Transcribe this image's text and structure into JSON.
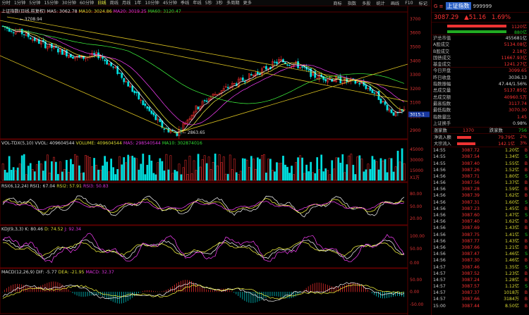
{
  "timeframes": [
    "分时",
    "1分钟",
    "5分钟",
    "15分钟",
    "30分钟",
    "60分钟",
    "日线",
    "周线",
    "月线",
    "1年"
  ],
  "timeframes2": [
    "10分钟",
    "45分钟",
    "季线",
    "年线",
    "5秒",
    "3秒",
    "多周期",
    "更多"
  ],
  "active_timeframe": "日线",
  "top_right": [
    "商标",
    "指数",
    "多股",
    "统计",
    "画线",
    "F10",
    "标记"
  ],
  "main_head": {
    "title": "上证指数(日线,前复权)",
    "ma5": "MA5: 3062.78",
    "ma10": "MA10: 3024.86",
    "ma20": "MA20: 3019.25",
    "ma60": "MA60: 3120.47"
  },
  "vol_head": {
    "title": "VOL-TDX(5,10)",
    "vvol": "VVOL: 409604544",
    "volume": "VOLUME: 409604544",
    "ma5": "MA5: 298540544",
    "ma10": "MA10: 302874016"
  },
  "rsi_head": {
    "title": "RSI(6,12,24)",
    "rsi1": "RSI1: 67.04",
    "rsi2": "RSI2: 57.91",
    "rsi3": "RSI3: 50.83"
  },
  "kdj_head": {
    "title": "KDJ(9,3,3)",
    "k": "K: 80.46",
    "d": "D: 74.52",
    "j": "J: 92.34"
  },
  "macd_head": {
    "title": "MACD(12,26,9)",
    "dif": "DIF: -5.77",
    "dea": "DEA: -21.95",
    "macd": "MACD: 32.37"
  },
  "price_axis": [
    "3700",
    "3600",
    "3500",
    "3400",
    "3300",
    "3200",
    "3100",
    "3000",
    "2900"
  ],
  "vol_axis": [
    "45000",
    "30000",
    "15000",
    "X1万"
  ],
  "rsi_axis": [
    "80.00",
    "50.00",
    "20.00"
  ],
  "kdj_axis": [
    "100.00",
    "50.00",
    "0.00"
  ],
  "macd_axis": [
    "50.00",
    "0.00",
    "-50.00"
  ],
  "high_label": "3708.94",
  "low_label": "2863.65",
  "current_label": "3015.1",
  "quote": {
    "mark": "G ≡",
    "name": "上证指数",
    "code": "999999",
    "price": "3087.29",
    "change": "▲51.16",
    "pct": "1.69%",
    "bar_up": "1120亿",
    "bar_down": "880亿"
  },
  "stats": [
    {
      "k": "沪总市值",
      "v": "455681亿",
      "c": "w"
    },
    {
      "k": "A股成交",
      "v": "5134.08亿",
      "c": "r"
    },
    {
      "k": "B股成交",
      "v": "2.18亿",
      "c": "r"
    },
    {
      "k": "国债成交",
      "v": "11667.93亿",
      "c": "r"
    },
    {
      "k": "基金成交",
      "v": "1241.27亿",
      "c": "r"
    },
    {
      "k": "今日开盘",
      "v": "3099.65",
      "c": "r"
    },
    {
      "k": "昨日收盘",
      "v": "3036.13",
      "c": "w"
    },
    {
      "k": "指数振幅",
      "v": "47.44/1.56%",
      "c": "w"
    },
    {
      "k": "总成交量",
      "v": "5137.85亿",
      "c": "r"
    },
    {
      "k": "总成交额",
      "v": "40960.5万",
      "c": "r"
    },
    {
      "k": "最高指数",
      "v": "3117.74",
      "c": "r"
    },
    {
      "k": "最低指数",
      "v": "3070.30",
      "c": "r"
    },
    {
      "k": "指数量比",
      "v": "1.45",
      "c": "r"
    },
    {
      "k": "上证换手",
      "v": "0.98%",
      "c": "w"
    }
  ],
  "updown": {
    "up_label": "涨家数",
    "up": "1370",
    "down_label": "跌家数",
    "down": "756"
  },
  "flows": [
    {
      "k": "净流入额",
      "v": "79.79亿",
      "p": "2%",
      "w": 20
    },
    {
      "k": "大宗流入",
      "v": "142.1亿",
      "p": "3%",
      "w": 26
    }
  ],
  "ticks": [
    {
      "t": "14:55",
      "p": "3087.72",
      "v": "1.20亿",
      "s": "B"
    },
    {
      "t": "14:55",
      "p": "3087.54",
      "v": "1.34亿",
      "s": "S"
    },
    {
      "t": "14:55",
      "p": "3087.40",
      "v": "1.55亿",
      "s": "B"
    },
    {
      "t": "14:56",
      "p": "3087.26",
      "v": "1.52亿",
      "s": "B"
    },
    {
      "t": "14:56",
      "p": "3087.71",
      "v": "1.80亿",
      "s": "S"
    },
    {
      "t": "14:56",
      "p": "3087.56",
      "v": "1.37亿",
      "s": "B"
    },
    {
      "t": "14:56",
      "p": "3087.28",
      "v": "1.59亿",
      "s": "B"
    },
    {
      "t": "14:56",
      "p": "3087.39",
      "v": "1.62亿",
      "s": "B"
    },
    {
      "t": "14:56",
      "p": "3087.31",
      "v": "1.60亿",
      "s": "S"
    },
    {
      "t": "14:56",
      "p": "3087.23",
      "v": "1.45亿",
      "s": "B"
    },
    {
      "t": "14:56",
      "p": "3087.60",
      "v": "1.47亿",
      "s": "S"
    },
    {
      "t": "14:56",
      "p": "3087.40",
      "v": "1.62亿",
      "s": "B"
    },
    {
      "t": "14:56",
      "p": "3087.69",
      "v": "1.43亿",
      "s": "B"
    },
    {
      "t": "14:56",
      "p": "3087.75",
      "v": "1.41亿",
      "s": "S"
    },
    {
      "t": "14:56",
      "p": "3087.77",
      "v": "1.43亿",
      "s": "B"
    },
    {
      "t": "14:56",
      "p": "3087.66",
      "v": "1.21亿",
      "s": "B"
    },
    {
      "t": "14:56",
      "p": "3087.47",
      "v": "1.46亿",
      "s": "S"
    },
    {
      "t": "14:56",
      "p": "3087.30",
      "v": "1.46亿",
      "s": "B"
    },
    {
      "t": "14:57",
      "p": "3087.46",
      "v": "1.35亿",
      "s": "S"
    },
    {
      "t": "14:57",
      "p": "3087.52",
      "v": "1.23亿",
      "s": "B"
    },
    {
      "t": "14:57",
      "p": "3087.24",
      "v": "1.28亿",
      "s": "B"
    },
    {
      "t": "14:57",
      "p": "3087.57",
      "v": "1.12亿",
      "s": "S"
    },
    {
      "t": "14:57",
      "p": "3087.37",
      "v": "1018万",
      "s": "B"
    },
    {
      "t": "14:57",
      "p": "3087.66",
      "v": "3184万",
      "s": "B"
    },
    {
      "t": "15:00",
      "p": "3087.44",
      "v": "8.50亿",
      "s": "B"
    }
  ]
}
